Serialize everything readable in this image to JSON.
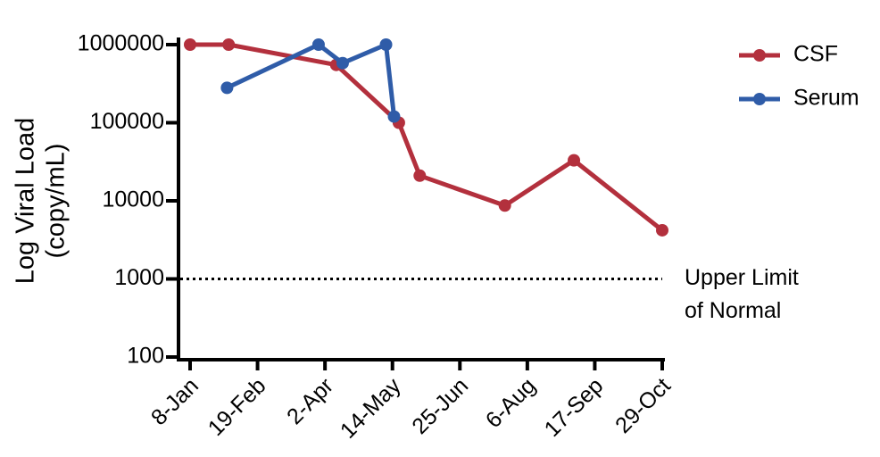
{
  "chart_data": {
    "type": "line",
    "ylabel": [
      "Log Viral Load",
      "(copy/mL)"
    ],
    "log_y": true,
    "ylim": [
      100,
      1000000
    ],
    "yticks": [
      100,
      1000,
      10000,
      100000,
      1000000
    ],
    "xlim": [
      0,
      294
    ],
    "xticks": [
      {
        "value": 0,
        "label": "8-Jan"
      },
      {
        "value": 42,
        "label": "19-Feb"
      },
      {
        "value": 84,
        "label": "2-Apr"
      },
      {
        "value": 126,
        "label": "14-May"
      },
      {
        "value": 168,
        "label": "25-Jun"
      },
      {
        "value": 210,
        "label": "6-Aug"
      },
      {
        "value": 252,
        "label": "17-Sep"
      },
      {
        "value": 294,
        "label": "29-Oct"
      }
    ],
    "series": [
      {
        "name": "CSF",
        "color": "#b3303d",
        "x": [
          0,
          24,
          91,
          130,
          143,
          196,
          239,
          294
        ],
        "values": [
          1000000,
          1000000,
          550000,
          100000,
          21000,
          8700,
          33000,
          4200
        ]
      },
      {
        "name": "Serum",
        "color": "#2f5ca8",
        "x": [
          23,
          80,
          95,
          122,
          127
        ],
        "values": [
          280000,
          1000000,
          580000,
          1000000,
          120000
        ]
      }
    ],
    "reference_line": {
      "value": 1000,
      "label": [
        "Upper Limit",
        "of Normal"
      ]
    },
    "legend": "top-right"
  }
}
